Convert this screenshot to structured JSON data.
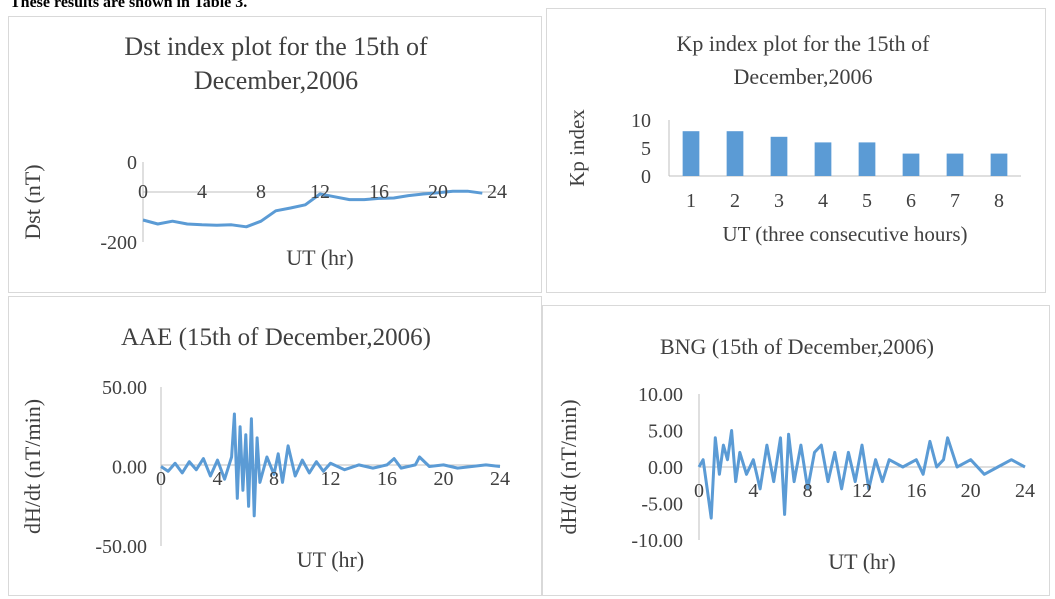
{
  "caption": "These results are shown in Table 3.",
  "colors": {
    "series": "#5b9bd5",
    "axis": "#bfbfbf",
    "text": "#404040"
  },
  "chart_data": [
    {
      "type": "line",
      "title": "Dst index plot for the 15th of December,2006",
      "title_lines": [
        "Dst index plot for the 15th of",
        "December,2006"
      ],
      "xlabel": "UT (hr)",
      "ylabel": "Dst (nT)",
      "xlim": [
        0,
        24
      ],
      "ylim": [
        -200,
        0
      ],
      "xticks": [
        "0",
        "4",
        "8",
        "12",
        "16",
        "20",
        "24"
      ],
      "yticks": [
        "0",
        "-200"
      ],
      "grid": false,
      "series": [
        {
          "x": [
            0,
            1,
            2,
            3,
            4,
            5,
            6,
            7,
            8,
            9,
            10,
            11,
            12,
            13,
            14,
            15,
            16,
            17,
            18,
            19,
            20,
            21,
            22,
            23
          ],
          "values": [
            -145,
            -155,
            -148,
            -155,
            -157,
            -158,
            -157,
            -162,
            -148,
            -122,
            -115,
            -107,
            -80,
            -87,
            -94,
            -94,
            -91,
            -90,
            -84,
            -80,
            -77,
            -73,
            -73,
            -78
          ]
        }
      ]
    },
    {
      "type": "bar",
      "title": "Kp index plot for the 15th of December,2006",
      "title_lines": [
        "Kp index plot for the 15th of",
        "December,2006"
      ],
      "xlabel": "UT (three consecutive hours)",
      "ylabel": "Kp index",
      "categories": [
        "1",
        "2",
        "3",
        "4",
        "5",
        "6",
        "7",
        "8"
      ],
      "values": [
        8,
        8,
        7,
        6,
        6,
        4,
        4,
        4
      ],
      "ylim": [
        0,
        10
      ],
      "yticks": [
        "10",
        "5",
        "0"
      ],
      "grid": false
    },
    {
      "type": "line",
      "title": "AAE (15th of December,2006)",
      "xlabel": "UT (hr)",
      "ylabel": "dH/dt (nT/min)",
      "xlim": [
        0,
        24
      ],
      "ylim": [
        -50,
        50
      ],
      "xticks": [
        "0",
        "4",
        "8",
        "12",
        "16",
        "20",
        "24"
      ],
      "yticks": [
        "50.00",
        "0.00",
        "-50.00"
      ],
      "grid": false,
      "series": [
        {
          "x": [
            0,
            0.5,
            1,
            1.5,
            2,
            2.5,
            3,
            3.5,
            4,
            4.5,
            5,
            5.2,
            5.4,
            5.6,
            5.8,
            6,
            6.2,
            6.4,
            6.6,
            6.8,
            7,
            7.5,
            8,
            8.3,
            8.6,
            9,
            9.5,
            10,
            10.5,
            11,
            11.5,
            12,
            13,
            14,
            15,
            16,
            16.5,
            17,
            18,
            18.3,
            19,
            20,
            21,
            22,
            23,
            24
          ],
          "values": [
            0,
            -3,
            2,
            -4,
            3,
            -2,
            5,
            -6,
            4,
            -8,
            6,
            33,
            -20,
            25,
            -15,
            20,
            -25,
            30,
            -31,
            18,
            -10,
            6,
            -5,
            8,
            -10,
            13,
            -6,
            4,
            -4,
            3,
            -3,
            2,
            -2,
            1,
            -1,
            1,
            5,
            -1,
            1,
            6,
            0,
            1,
            -1,
            0,
            1,
            0
          ]
        }
      ]
    },
    {
      "type": "line",
      "title": "BNG (15th of December,2006)",
      "xlabel": "UT (hr)",
      "ylabel": "dH/dt (nT/min)",
      "xlim": [
        0,
        24
      ],
      "ylim": [
        -10,
        10
      ],
      "xticks": [
        "0",
        "4",
        "8",
        "12",
        "16",
        "20",
        "24"
      ],
      "yticks": [
        "10.00",
        "5.00",
        "0.00",
        "-5.00",
        "-10.00"
      ],
      "grid": false,
      "series": [
        {
          "x": [
            0,
            0.3,
            0.6,
            0.9,
            1.2,
            1.5,
            1.8,
            2.1,
            2.4,
            2.7,
            3,
            3.5,
            4,
            4.5,
            5,
            5.5,
            6,
            6.3,
            6.6,
            7,
            7.5,
            8,
            8.5,
            9,
            9.5,
            10,
            10.5,
            11,
            11.5,
            12,
            12.5,
            13,
            13.5,
            14,
            15,
            16,
            16.5,
            17,
            17.5,
            18,
            18.3,
            19,
            20,
            21,
            22,
            23,
            24
          ],
          "values": [
            0,
            1,
            -3,
            -7,
            4,
            -1,
            3,
            1,
            5,
            -2,
            2,
            -1,
            1,
            -3,
            3,
            -2,
            4,
            -6.5,
            4.5,
            -2,
            3,
            -3,
            2,
            3,
            -2,
            2,
            -3,
            2,
            -2,
            3,
            -3,
            1,
            -2,
            1,
            0,
            1,
            -1,
            3.5,
            0,
            1,
            4,
            0,
            1,
            -1,
            0,
            1,
            0
          ]
        }
      ]
    }
  ]
}
